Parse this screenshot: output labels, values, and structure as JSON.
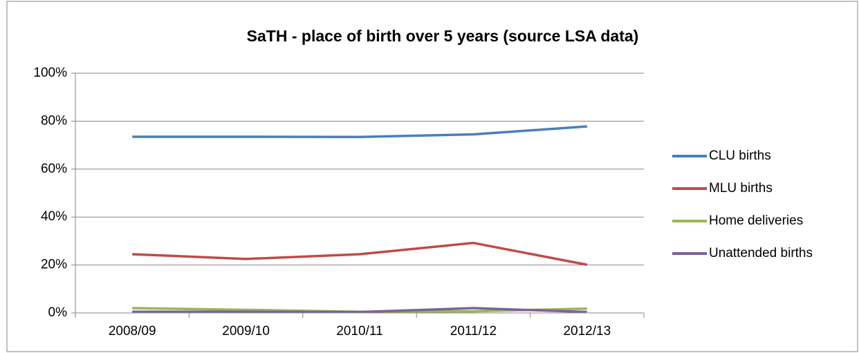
{
  "chart_data": {
    "type": "line",
    "title": "SaTH - place of birth over 5 years (source LSA data)",
    "categories": [
      "2008/09",
      "2009/10",
      "2010/11",
      "2011/12",
      "2012/13"
    ],
    "series": [
      {
        "name": "CLU births",
        "color": "#4a7ebb",
        "values": [
          73.5,
          73.5,
          73.4,
          74.5,
          77.8
        ]
      },
      {
        "name": "MLU births",
        "color": "#be4b48",
        "values": [
          24.5,
          22.5,
          24.5,
          29.2,
          20.1
        ]
      },
      {
        "name": "Home deliveries",
        "color": "#98b954",
        "values": [
          2,
          1.3,
          0.5,
          0.7,
          1.8
        ]
      },
      {
        "name": "Unattended births",
        "color": "#7d60a0",
        "values": [
          0.5,
          0.5,
          0.4,
          2,
          0.4
        ]
      }
    ],
    "ylim": [
      0,
      100
    ],
    "yticks": [
      {
        "value": 0,
        "label": "0%"
      },
      {
        "value": 20,
        "label": "20%"
      },
      {
        "value": 40,
        "label": "40%"
      },
      {
        "value": 60,
        "label": "60%"
      },
      {
        "value": 80,
        "label": "80%"
      },
      {
        "value": 100,
        "label": "100%"
      }
    ],
    "grid": true,
    "legend": "right"
  }
}
